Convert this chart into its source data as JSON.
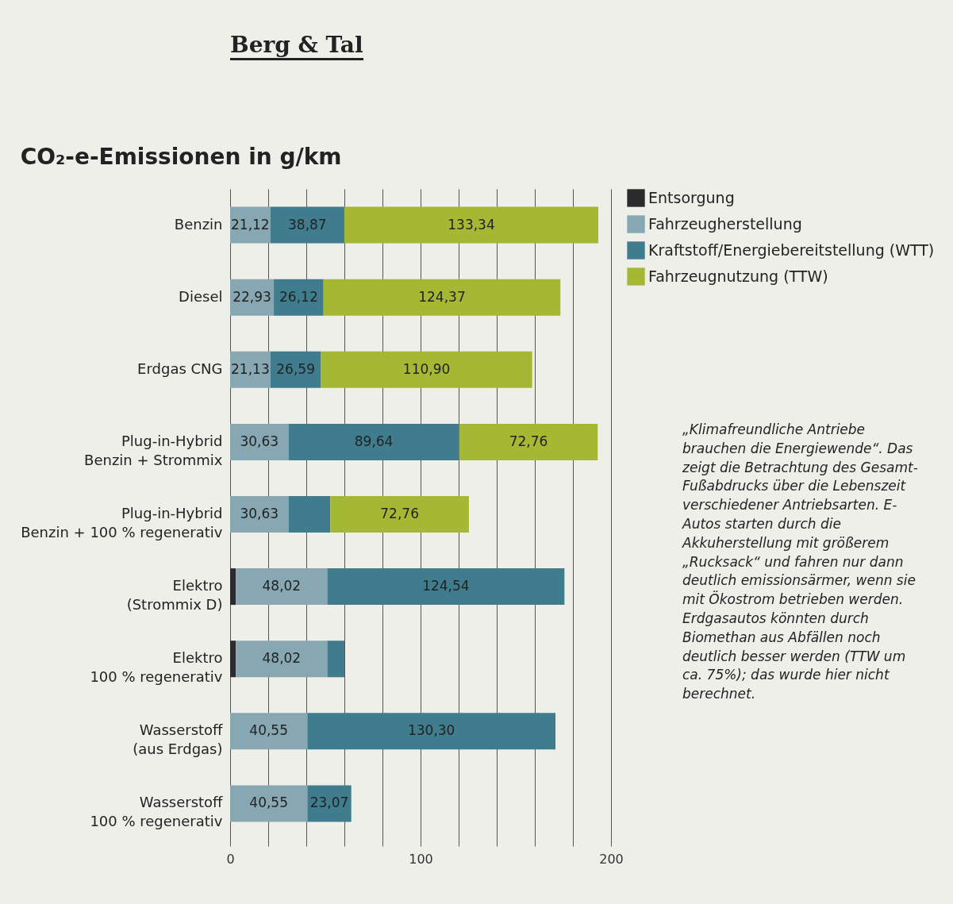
{
  "chart_data": {
    "type": "bar",
    "orientation": "horizontal",
    "stacked": true,
    "title": "CO₂-e-Emissionen in g/km",
    "categories": [
      "Benzin",
      "Diesel",
      "Erdgas CNG",
      "Plug-in-Hybrid\nBenzin + Strommix",
      "Plug-in-Hybrid\nBenzin + 100 % regenerativ",
      "Elektro\n(Strommix D)",
      "Elektro\n100 % regenerativ",
      "Wasserstoff\n(aus Erdgas)",
      "Wasserstoff\n100 % regenerativ"
    ],
    "series": [
      {
        "name": "Entsorgung",
        "color": "#2b2b2e",
        "values": [
          null,
          null,
          null,
          null,
          null,
          3,
          3,
          null,
          null
        ],
        "value_labels": [
          null,
          null,
          null,
          null,
          null,
          null,
          null,
          null,
          null
        ]
      },
      {
        "name": "Fahrzeugherstellung",
        "color": "#87a7b3",
        "values": [
          21.12,
          22.93,
          21.13,
          30.63,
          30.63,
          48.02,
          48.02,
          40.55,
          40.55
        ],
        "value_labels": [
          "21,12",
          "22,93",
          "21,13",
          "30,63",
          "30,63",
          "48,02",
          "48,02",
          "40,55",
          "40,55"
        ]
      },
      {
        "name": "Kraftstoff/Energiebereitstellung (WTT)",
        "color": "#3f7d8e",
        "values": [
          38.87,
          26.12,
          26.59,
          89.64,
          22,
          124.54,
          9,
          130.3,
          23.07
        ],
        "value_labels": [
          "38,87",
          "26,12",
          "26,59",
          "89,64",
          null,
          "124,54",
          null,
          "130,30",
          "23,07"
        ]
      },
      {
        "name": "Fahrzeugnutzung (TTW)",
        "color": "#a5b834",
        "values": [
          133.34,
          124.37,
          110.9,
          72.76,
          72.76,
          null,
          null,
          null,
          null
        ],
        "value_labels": [
          "133,34",
          "124,37",
          "110,90",
          "72,76",
          "72,76",
          null,
          null,
          null,
          null
        ]
      }
    ],
    "xlim": [
      0,
      200
    ],
    "xticks": [
      0,
      {
        "value": 20,
        "label": null
      },
      {
        "value": 40,
        "label": null
      },
      {
        "value": 60,
        "label": null
      },
      {
        "value": 80,
        "label": null
      },
      100,
      {
        "value": 120,
        "label": null
      },
      {
        "value": 140,
        "label": null
      },
      {
        "value": 160,
        "label": null
      },
      {
        "value": 180,
        "label": null
      },
      200
    ],
    "grid": "x",
    "legend": "right",
    "annotations": [
      "Berg & Tal",
      "„Klimafreundliche Antriebe brauchen die Energiewende“. Das zeigt die Betrachtung des Gesamt-Fußabdrucks über die Lebenszeit verschiedener Antriebsarten. E-Autos starten durch die Akkuherstellung mit größerem „Rucksack“ und fahren nur dann deutlich emissionsärmer, wenn sie mit Ökostrom betrieben werden. Erdgasautos könnten durch Biomethan aus Abfällen noch deutlich besser werden (TTW um ca. 75%); das wurde hier nicht berechnet."
    ]
  }
}
